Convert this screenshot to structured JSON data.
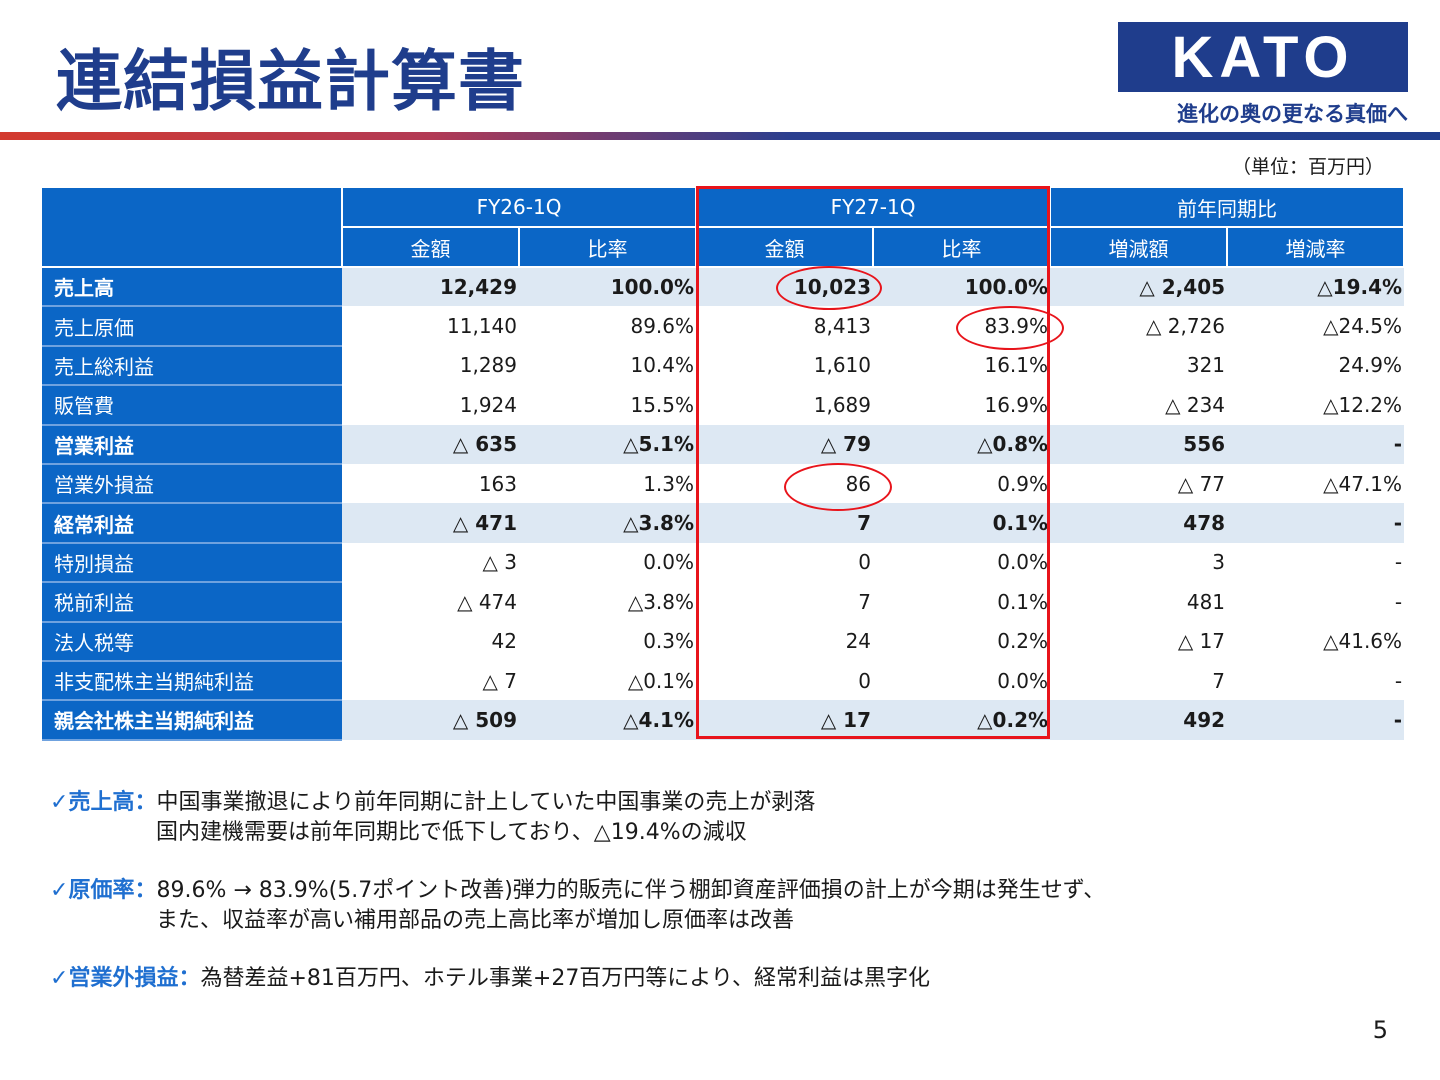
{
  "title": "連結損益計算書",
  "logo": {
    "name": "KATO",
    "tagline": "進化の奥の更なる真価へ"
  },
  "unit": "（単位：百万円）",
  "table": {
    "groups": [
      "FY26-1Q",
      "FY27-1Q",
      "前年同期比"
    ],
    "subheaders": [
      "金額",
      "比率",
      "金額",
      "比率",
      "増減額",
      "増減率"
    ],
    "rows": [
      {
        "label": "売上高",
        "bold": true,
        "cells": [
          "12,429",
          "100.0%",
          "10,023",
          "100.0%",
          "△ 2,405",
          "△19.4%"
        ]
      },
      {
        "label": "売上原価",
        "bold": false,
        "cells": [
          "11,140",
          "89.6%",
          "8,413",
          "83.9%",
          "△ 2,726",
          "△24.5%"
        ]
      },
      {
        "label": "売上総利益",
        "bold": false,
        "cells": [
          "1,289",
          "10.4%",
          "1,610",
          "16.1%",
          "321",
          "24.9%"
        ]
      },
      {
        "label": "販管費",
        "bold": false,
        "cells": [
          "1,924",
          "15.5%",
          "1,689",
          "16.9%",
          "△ 234",
          "△12.2%"
        ]
      },
      {
        "label": "営業利益",
        "bold": true,
        "cells": [
          "△ 635",
          "△5.1%",
          "△ 79",
          "△0.8%",
          "556",
          "-"
        ]
      },
      {
        "label": "営業外損益",
        "bold": false,
        "cells": [
          "163",
          "1.3%",
          "86",
          "0.9%",
          "△ 77",
          "△47.1%"
        ]
      },
      {
        "label": "経常利益",
        "bold": true,
        "cells": [
          "△ 471",
          "△3.8%",
          "7",
          "0.1%",
          "478",
          "-"
        ]
      },
      {
        "label": "特別損益",
        "bold": false,
        "cells": [
          "△ 3",
          "0.0%",
          "0",
          "0.0%",
          "3",
          "-"
        ]
      },
      {
        "label": "税前利益",
        "bold": false,
        "cells": [
          "△ 474",
          "△3.8%",
          "7",
          "0.1%",
          "481",
          "-"
        ]
      },
      {
        "label": "法人税等",
        "bold": false,
        "cells": [
          "42",
          "0.3%",
          "24",
          "0.2%",
          "△ 17",
          "△41.6%"
        ]
      },
      {
        "label": "非支配株主当期純利益",
        "bold": false,
        "cells": [
          "△ 7",
          "△0.1%",
          "0",
          "0.0%",
          "7",
          "-"
        ]
      },
      {
        "label": "親会社株主当期純利益",
        "bold": true,
        "cells": [
          "△ 509",
          "△4.1%",
          "△ 17",
          "△0.2%",
          "492",
          "-"
        ]
      }
    ]
  },
  "notes": [
    {
      "check": "✓",
      "head": "売上高：",
      "line1": "中国事業撤退により前年同期に計上していた中国事業の売上が剥落",
      "line2": "国内建機需要は前年同期比で低下しており、△19.4%の減収"
    },
    {
      "check": "✓",
      "head": "原価率：",
      "line1": "89.6% → 83.9%(5.7ポイント改善)弾力的販売に伴う棚卸資産評価損の計上が今期は発生せず、",
      "line2": "また、収益率が高い補用部品の売上高比率が増加し原価率は改善"
    },
    {
      "check": "✓",
      "head": "営業外損益：",
      "line1": "為替差益+81百万円、ホテル事業+27百万円等により、経常利益は黒字化",
      "line2": ""
    }
  ],
  "page_number": "5",
  "colors": {
    "brand": "#1f3d8c",
    "header_blue": "#0b66c6",
    "highlight_red": "#e8141b",
    "bold_row_bg": "#dde8f3"
  }
}
